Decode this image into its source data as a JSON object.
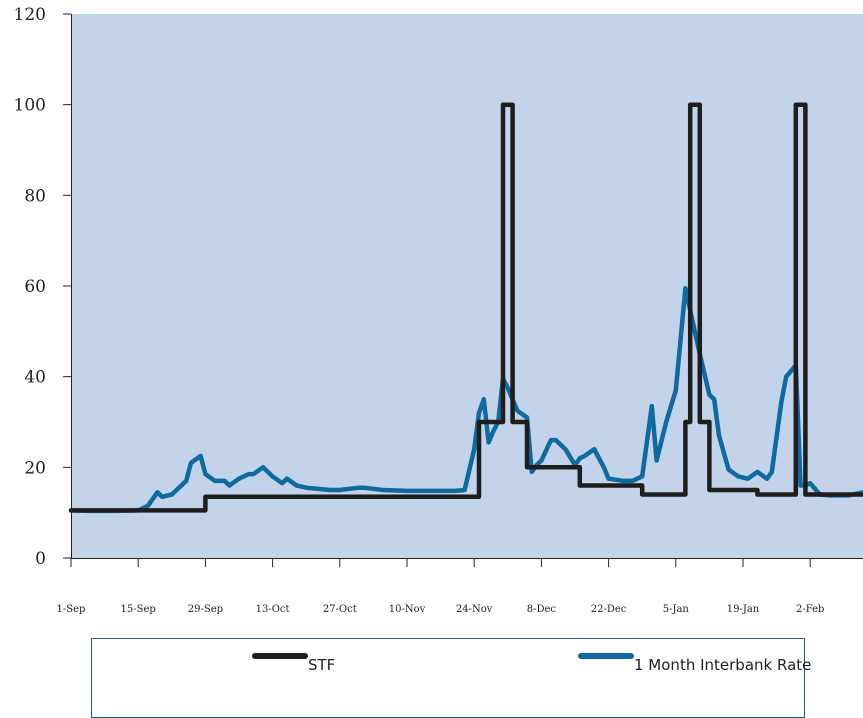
{
  "chart_data": {
    "type": "line",
    "title": "",
    "xlabel": "",
    "ylabel": "",
    "ylim": [
      0,
      120
    ],
    "yticks": [
      "0",
      "20",
      "40",
      "60",
      "80",
      "100",
      "120"
    ],
    "xlim": [
      "2008-09-01",
      "2009-02-13"
    ],
    "xtick_labels": [
      {
        "date": "2008-09-01",
        "label": "1-Sep"
      },
      {
        "date": "2008-09-15",
        "label": "15-Sep"
      },
      {
        "date": "2008-09-29",
        "label": "29-Sep"
      },
      {
        "date": "2008-10-13",
        "label": "13-Oct"
      },
      {
        "date": "2008-10-27",
        "label": "27-Oct"
      },
      {
        "date": "2008-11-10",
        "label": "10-Nov"
      },
      {
        "date": "2008-11-24",
        "label": "24-Nov"
      },
      {
        "date": "2008-12-08",
        "label": "8-Dec"
      },
      {
        "date": "2008-12-22",
        "label": "22-Dec"
      },
      {
        "date": "2009-01-05",
        "label": "5-Jan"
      },
      {
        "date": "2009-01-19",
        "label": "19-Jan"
      },
      {
        "date": "2009-02-02",
        "label": "2-Feb"
      }
    ],
    "grid": false,
    "background": "#c3d3e9",
    "legend_position": "bottom",
    "series": [
      {
        "name": "STF",
        "color": "#1e1e1e",
        "step": true,
        "points": [
          [
            "2008-09-01",
            10.5
          ],
          [
            "2008-09-29",
            13.5
          ],
          [
            "2008-11-25",
            30
          ],
          [
            "2008-11-30",
            100
          ],
          [
            "2008-12-02",
            30
          ],
          [
            "2008-12-05",
            20
          ],
          [
            "2008-12-16",
            16
          ],
          [
            "2008-12-29",
            14
          ],
          [
            "2009-01-07",
            30
          ],
          [
            "2009-01-08",
            100
          ],
          [
            "2009-01-10",
            30
          ],
          [
            "2009-01-12",
            15
          ],
          [
            "2009-01-22",
            14
          ],
          [
            "2009-01-30",
            100
          ],
          [
            "2009-02-01",
            14
          ],
          [
            "2009-02-13",
            14
          ]
        ]
      },
      {
        "name": "1 Month Interbank Rate",
        "color": "#0e6aa0",
        "step": false,
        "points": [
          [
            "2008-09-01",
            10.5
          ],
          [
            "2008-09-05",
            10.4
          ],
          [
            "2008-09-10",
            10.4
          ],
          [
            "2008-09-15",
            10.5
          ],
          [
            "2008-09-17",
            11.5
          ],
          [
            "2008-09-19",
            14.5
          ],
          [
            "2008-09-20",
            13.5
          ],
          [
            "2008-09-22",
            14.0
          ],
          [
            "2008-09-23",
            15.0
          ],
          [
            "2008-09-25",
            17.0
          ],
          [
            "2008-09-26",
            21.0
          ],
          [
            "2008-09-28",
            22.5
          ],
          [
            "2008-09-29",
            18.5
          ],
          [
            "2008-10-01",
            17.0
          ],
          [
            "2008-10-03",
            17.0
          ],
          [
            "2008-10-04",
            16.0
          ],
          [
            "2008-10-06",
            17.5
          ],
          [
            "2008-10-08",
            18.5
          ],
          [
            "2008-10-09",
            18.5
          ],
          [
            "2008-10-11",
            20.0
          ],
          [
            "2008-10-13",
            18.0
          ],
          [
            "2008-10-15",
            16.5
          ],
          [
            "2008-10-16",
            17.5
          ],
          [
            "2008-10-18",
            16.0
          ],
          [
            "2008-10-20",
            15.5
          ],
          [
            "2008-10-25",
            15.0
          ],
          [
            "2008-10-27",
            15.0
          ],
          [
            "2008-10-31",
            15.5
          ],
          [
            "2008-11-01",
            15.5
          ],
          [
            "2008-11-05",
            15.0
          ],
          [
            "2008-11-10",
            14.8
          ],
          [
            "2008-11-15",
            14.8
          ],
          [
            "2008-11-20",
            14.8
          ],
          [
            "2008-11-22",
            15.0
          ],
          [
            "2008-11-24",
            24.0
          ],
          [
            "2008-11-25",
            32.0
          ],
          [
            "2008-11-26",
            35.0
          ],
          [
            "2008-11-27",
            25.5
          ],
          [
            "2008-11-28",
            28.0
          ],
          [
            "2008-11-29",
            30.0
          ],
          [
            "2008-11-30",
            39.5
          ],
          [
            "2008-12-01",
            37.5
          ],
          [
            "2008-12-03",
            32.5
          ],
          [
            "2008-12-05",
            31.0
          ],
          [
            "2008-12-06",
            19.0
          ],
          [
            "2008-12-07",
            20.5
          ],
          [
            "2008-12-08",
            21.5
          ],
          [
            "2008-12-10",
            26.0
          ],
          [
            "2008-12-11",
            26.0
          ],
          [
            "2008-12-13",
            24.0
          ],
          [
            "2008-12-15",
            20.5
          ],
          [
            "2008-12-16",
            22.0
          ],
          [
            "2008-12-17",
            22.5
          ],
          [
            "2008-12-19",
            24.0
          ],
          [
            "2008-12-21",
            20.0
          ],
          [
            "2008-12-22",
            17.5
          ],
          [
            "2008-12-25",
            17.0
          ],
          [
            "2008-12-27",
            17.0
          ],
          [
            "2008-12-29",
            18.0
          ],
          [
            "2008-12-31",
            33.5
          ],
          [
            "2009-01-01",
            21.5
          ],
          [
            "2009-01-03",
            30.0
          ],
          [
            "2009-01-05",
            37.0
          ],
          [
            "2009-01-07",
            59.5
          ],
          [
            "2009-01-10",
            45.0
          ],
          [
            "2009-01-12",
            36.0
          ],
          [
            "2009-01-13",
            35.0
          ],
          [
            "2009-01-14",
            27.0
          ],
          [
            "2009-01-16",
            19.5
          ],
          [
            "2009-01-18",
            18.0
          ],
          [
            "2009-01-20",
            17.5
          ],
          [
            "2009-01-22",
            19.0
          ],
          [
            "2009-01-24",
            17.5
          ],
          [
            "2009-01-25",
            19.0
          ],
          [
            "2009-01-27",
            34.5
          ],
          [
            "2009-01-28",
            40.0
          ],
          [
            "2009-01-30",
            42.5
          ],
          [
            "2009-01-31",
            16.0
          ],
          [
            "2009-02-01",
            16.0
          ],
          [
            "2009-02-02",
            16.5
          ],
          [
            "2009-02-04",
            14.0
          ],
          [
            "2009-02-06",
            13.8
          ],
          [
            "2009-02-10",
            13.8
          ],
          [
            "2009-02-13",
            14.5
          ]
        ]
      }
    ]
  }
}
